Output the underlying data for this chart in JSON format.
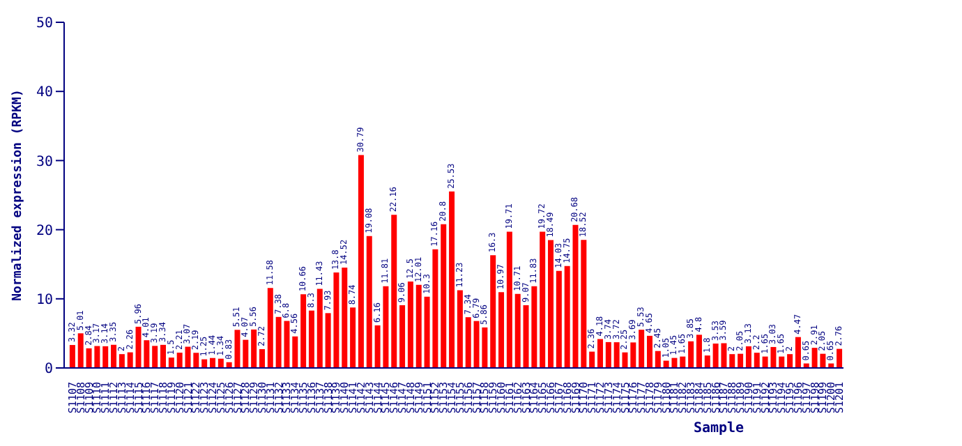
{
  "chart_data": {
    "type": "bar",
    "xlabel": "Sample",
    "ylabel": "Normalized expression (RPKM)",
    "categories": [
      "S1107",
      "S1108",
      "S1109",
      "S1110",
      "S1111",
      "S1112",
      "S1113",
      "S1114",
      "S1115",
      "S1116",
      "S1117",
      "S1118",
      "S1119",
      "S1120",
      "S1121",
      "S1122",
      "S1123",
      "S1124",
      "S1125",
      "S1126",
      "S1127",
      "S1128",
      "S1129",
      "S1130",
      "S1131",
      "S1132",
      "S1133",
      "S1134",
      "S1135",
      "S1136",
      "S1137",
      "S1138",
      "S1139",
      "S1140",
      "S1141",
      "S1142",
      "S1143",
      "S1144",
      "S1145",
      "S1146",
      "S1147",
      "S1148",
      "S1149",
      "S1151",
      "S1152",
      "S1153",
      "S1154",
      "S1155",
      "S1156",
      "S1157",
      "S1158",
      "S1159",
      "S1160",
      "S1161",
      "S1162",
      "S1163",
      "S1164",
      "S1165",
      "S1166",
      "S1167",
      "S1168",
      "S1169",
      "S1170",
      "S1171",
      "S1172",
      "S1173",
      "S1174",
      "S1175",
      "S1176",
      "S1177",
      "S1178",
      "S1179",
      "S1180",
      "S1181",
      "S1182",
      "S1183",
      "S1184",
      "S1185",
      "S1186",
      "S1187",
      "S1188",
      "S1189",
      "S1190",
      "S1191",
      "S1192",
      "S1193",
      "S1194",
      "S1195",
      "S1196",
      "S1197",
      "S1198",
      "S1199",
      "S1200",
      "S1201"
    ],
    "values": [
      3.32,
      5.01,
      2.84,
      3.17,
      3.14,
      3.35,
      2.0,
      2.26,
      5.96,
      4.01,
      3.19,
      3.34,
      1.5,
      2.21,
      3.07,
      2.19,
      1.25,
      1.44,
      1.34,
      0.83,
      5.51,
      4.07,
      5.56,
      2.72,
      11.58,
      7.38,
      6.8,
      4.56,
      10.66,
      8.3,
      11.43,
      7.93,
      13.8,
      14.52,
      8.74,
      30.79,
      19.08,
      6.16,
      11.81,
      22.16,
      9.06,
      12.5,
      12.01,
      10.3,
      17.16,
      20.8,
      25.53,
      11.23,
      7.34,
      6.79,
      5.86,
      16.3,
      10.97,
      19.71,
      10.71,
      9.07,
      11.83,
      19.72,
      18.49,
      14.03,
      14.75,
      20.68,
      18.52,
      2.36,
      4.18,
      3.74,
      3.72,
      2.25,
      3.69,
      5.53,
      4.65,
      2.45,
      1.05,
      1.45,
      1.65,
      3.85,
      4.8,
      1.8,
      3.53,
      3.59,
      2.0,
      2.05,
      3.13,
      2.2,
      1.65,
      3.03,
      1.65,
      2.0,
      4.47,
      0.65,
      2.91,
      2.05,
      0.65,
      2.76
    ],
    "color": "#ff0000",
    "ylim": [
      0,
      50
    ],
    "yticks": [
      0,
      10,
      20,
      30,
      40,
      50
    ],
    "data_labels": true,
    "grid": false
  }
}
